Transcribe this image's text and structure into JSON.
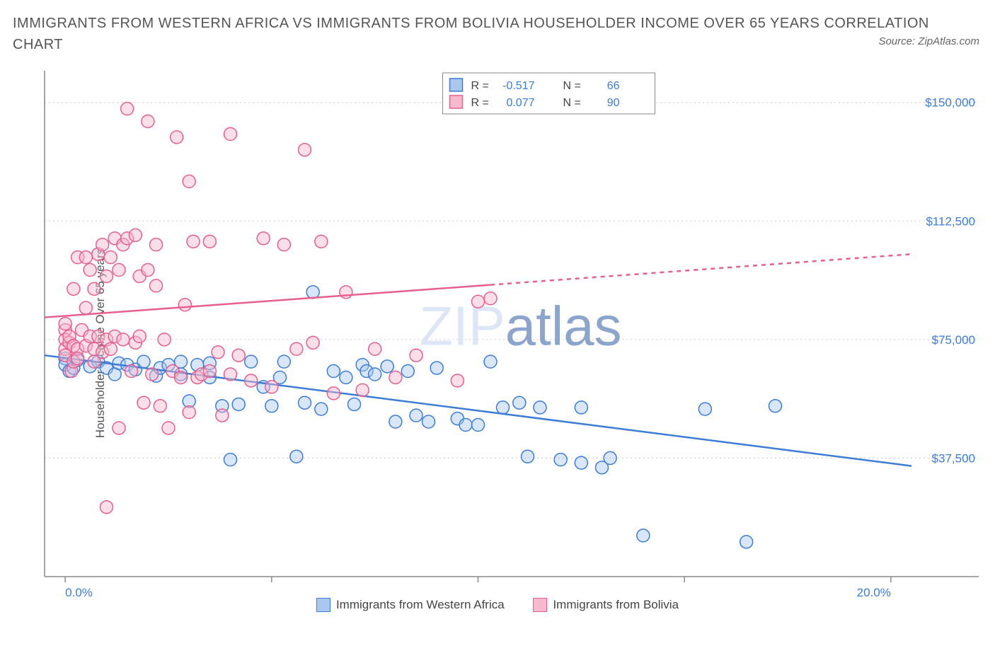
{
  "title": "IMMIGRANTS FROM WESTERN AFRICA VS IMMIGRANTS FROM BOLIVIA HOUSEHOLDER INCOME OVER 65 YEARS CORRELATION CHART",
  "source": "Source: ZipAtlas.com",
  "y_axis_title": "Householder Income Over 65 years",
  "watermark_light": "ZIP",
  "watermark_dark": "atlas",
  "colors": {
    "blue_stroke": "#3b7dd8",
    "blue_fill": "#a9c8f0",
    "pink_stroke": "#e75f8d",
    "pink_fill": "#f7b9cd",
    "grid": "#cccccc",
    "axis": "#888888",
    "title_text": "#555555",
    "tick_text": "#3b7dd8",
    "bg": "#ffffff"
  },
  "chart": {
    "type": "scatter",
    "xlim": [
      -0.5,
      20.5
    ],
    "ylim": [
      0,
      160000
    ],
    "x_ticks": [
      0,
      5,
      10,
      15,
      20
    ],
    "x_tick_labels_shown": {
      "0": "0.0%",
      "20": "20.0%"
    },
    "y_ticks": [
      37500,
      75000,
      112500,
      150000
    ],
    "y_tick_labels": [
      "$37,500",
      "$75,000",
      "$112,500",
      "$150,000"
    ],
    "marker_radius": 9,
    "marker_stroke_width": 1.5,
    "marker_fill_opacity": 0.45,
    "line_width": 2.5,
    "background_color": "#ffffff"
  },
  "series": [
    {
      "name": "Immigrants from Western Africa",
      "legend_label": "Immigrants from Western Africa",
      "stroke": "#3b7dd8",
      "fill": "#a9c8f0",
      "r_value": "-0.517",
      "n_value": "66",
      "regression": {
        "x1": -0.5,
        "y1": 70000,
        "x2": 20.5,
        "y2": 35000,
        "dashed_from_x": null
      },
      "points": [
        [
          0.0,
          69000
        ],
        [
          0.0,
          67000
        ],
        [
          0.1,
          65000
        ],
        [
          0.2,
          66000
        ],
        [
          0.3,
          68500
        ],
        [
          0.6,
          66500
        ],
        [
          0.8,
          68000
        ],
        [
          1.0,
          66000
        ],
        [
          1.2,
          64000
        ],
        [
          1.3,
          67500
        ],
        [
          1.5,
          67000
        ],
        [
          1.7,
          65500
        ],
        [
          1.9,
          68000
        ],
        [
          2.2,
          63500
        ],
        [
          2.3,
          66000
        ],
        [
          2.5,
          67000
        ],
        [
          2.8,
          64000
        ],
        [
          2.8,
          68000
        ],
        [
          3.0,
          55500
        ],
        [
          3.2,
          67000
        ],
        [
          3.5,
          63000
        ],
        [
          3.5,
          67500
        ],
        [
          3.8,
          54000
        ],
        [
          4.0,
          37000
        ],
        [
          4.2,
          54500
        ],
        [
          4.5,
          68000
        ],
        [
          4.8,
          60000
        ],
        [
          5.0,
          54000
        ],
        [
          5.2,
          63000
        ],
        [
          5.3,
          68000
        ],
        [
          5.6,
          38000
        ],
        [
          5.8,
          55000
        ],
        [
          6.0,
          90000
        ],
        [
          6.2,
          53000
        ],
        [
          6.5,
          65000
        ],
        [
          6.8,
          63000
        ],
        [
          7.0,
          54500
        ],
        [
          7.2,
          67000
        ],
        [
          7.3,
          65000
        ],
        [
          7.5,
          64000
        ],
        [
          7.8,
          66500
        ],
        [
          8.0,
          49000
        ],
        [
          8.3,
          65000
        ],
        [
          8.5,
          51000
        ],
        [
          8.8,
          49000
        ],
        [
          9.0,
          66000
        ],
        [
          9.5,
          50000
        ],
        [
          9.7,
          48000
        ],
        [
          10.0,
          48000
        ],
        [
          10.3,
          68000
        ],
        [
          10.6,
          53500
        ],
        [
          11.0,
          55000
        ],
        [
          11.2,
          38000
        ],
        [
          11.5,
          53500
        ],
        [
          12.0,
          37000
        ],
        [
          12.5,
          53500
        ],
        [
          12.5,
          36000
        ],
        [
          13.0,
          34500
        ],
        [
          13.2,
          37500
        ],
        [
          14.0,
          13000
        ],
        [
          15.5,
          53000
        ],
        [
          16.5,
          11000
        ],
        [
          17.2,
          54000
        ]
      ]
    },
    {
      "name": "Immigrants from Bolivia",
      "legend_label": "Immigrants from Bolivia",
      "stroke": "#e75f8d",
      "fill": "#f7b9cd",
      "r_value": "0.077",
      "n_value": "90",
      "regression": {
        "x1": -0.5,
        "y1": 82000,
        "x2": 20.5,
        "y2": 102000,
        "dashed_from_x": 10.3
      },
      "points": [
        [
          0.0,
          78000
        ],
        [
          0.0,
          75000
        ],
        [
          0.0,
          72000
        ],
        [
          0.0,
          70000
        ],
        [
          0.0,
          80000
        ],
        [
          0.1,
          74000
        ],
        [
          0.1,
          76000
        ],
        [
          0.15,
          65000
        ],
        [
          0.2,
          68000
        ],
        [
          0.2,
          73000
        ],
        [
          0.2,
          91000
        ],
        [
          0.3,
          101000
        ],
        [
          0.3,
          72000
        ],
        [
          0.3,
          69000
        ],
        [
          0.4,
          78000
        ],
        [
          0.5,
          85000
        ],
        [
          0.5,
          73000
        ],
        [
          0.5,
          101000
        ],
        [
          0.6,
          97000
        ],
        [
          0.6,
          76000
        ],
        [
          0.7,
          91000
        ],
        [
          0.7,
          72000
        ],
        [
          0.7,
          68000
        ],
        [
          0.8,
          76000
        ],
        [
          0.8,
          102000
        ],
        [
          0.9,
          105000
        ],
        [
          0.9,
          71000
        ],
        [
          1.0,
          95000
        ],
        [
          1.0,
          75000
        ],
        [
          1.0,
          22000
        ],
        [
          1.1,
          101000
        ],
        [
          1.1,
          72000
        ],
        [
          1.2,
          107000
        ],
        [
          1.2,
          76000
        ],
        [
          1.3,
          47000
        ],
        [
          1.3,
          97000
        ],
        [
          1.4,
          75000
        ],
        [
          1.4,
          105000
        ],
        [
          1.5,
          107000
        ],
        [
          1.5,
          148000
        ],
        [
          1.6,
          65000
        ],
        [
          1.7,
          108000
        ],
        [
          1.7,
          74000
        ],
        [
          1.8,
          76000
        ],
        [
          1.8,
          95000
        ],
        [
          1.9,
          55000
        ],
        [
          2.0,
          144000
        ],
        [
          2.0,
          97000
        ],
        [
          2.1,
          64000
        ],
        [
          2.2,
          92000
        ],
        [
          2.2,
          105000
        ],
        [
          2.3,
          54000
        ],
        [
          2.4,
          75000
        ],
        [
          2.5,
          47000
        ],
        [
          2.6,
          65000
        ],
        [
          2.7,
          139000
        ],
        [
          2.8,
          63000
        ],
        [
          2.9,
          86000
        ],
        [
          3.0,
          52000
        ],
        [
          3.0,
          125000
        ],
        [
          3.1,
          106000
        ],
        [
          3.2,
          63000
        ],
        [
          3.3,
          64000
        ],
        [
          3.5,
          65000
        ],
        [
          3.5,
          106000
        ],
        [
          3.7,
          71000
        ],
        [
          3.8,
          51000
        ],
        [
          4.0,
          140000
        ],
        [
          4.0,
          64000
        ],
        [
          4.2,
          70000
        ],
        [
          4.5,
          62000
        ],
        [
          4.8,
          107000
        ],
        [
          5.0,
          60000
        ],
        [
          5.3,
          105000
        ],
        [
          5.6,
          72000
        ],
        [
          5.8,
          135000
        ],
        [
          6.0,
          74000
        ],
        [
          6.2,
          106000
        ],
        [
          6.5,
          58000
        ],
        [
          6.8,
          90000
        ],
        [
          7.2,
          59000
        ],
        [
          7.5,
          72000
        ],
        [
          8.0,
          63000
        ],
        [
          8.5,
          70000
        ],
        [
          9.5,
          62000
        ],
        [
          10.0,
          87000
        ],
        [
          10.3,
          88000
        ]
      ]
    }
  ],
  "stats_legend": {
    "r_label": "R =",
    "n_label": "N ="
  },
  "bottom_legend_items": [
    {
      "label": "Immigrants from Western Africa",
      "fill": "#a9c8f0",
      "stroke": "#3b7dd8"
    },
    {
      "label": "Immigrants from Bolivia",
      "fill": "#f7b9cd",
      "stroke": "#e75f8d"
    }
  ]
}
